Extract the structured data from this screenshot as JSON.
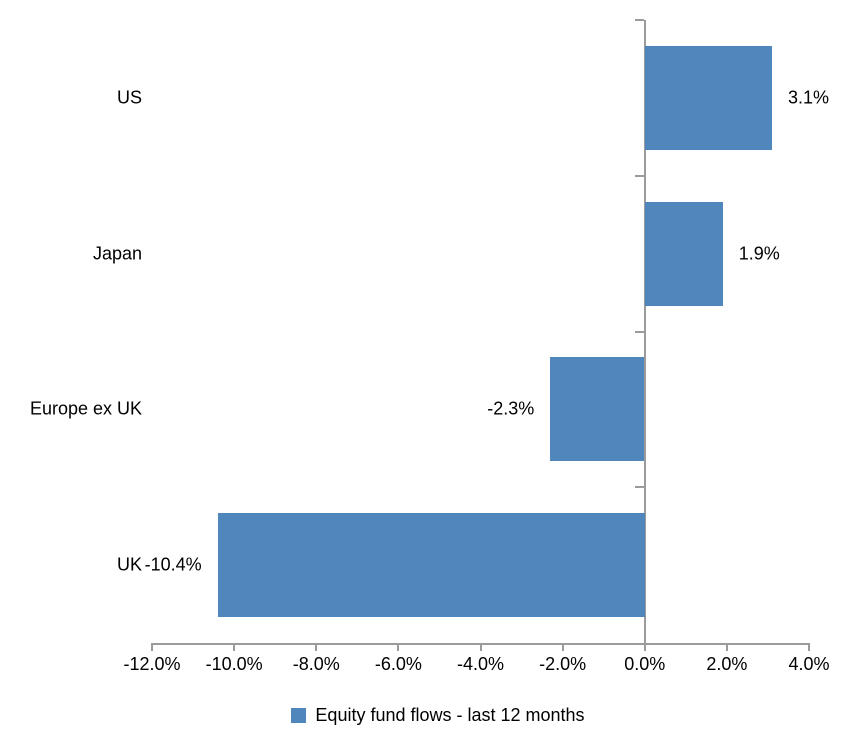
{
  "chart_data": {
    "type": "bar",
    "orientation": "horizontal",
    "title": "",
    "categories": [
      "US",
      "Japan",
      "Europe ex UK",
      "UK"
    ],
    "series": [
      {
        "name": "Equity fund flows - last 12 months",
        "values": [
          3.1,
          1.9,
          -2.3,
          -10.4
        ],
        "value_labels": [
          "3.1%",
          "1.9%",
          "-2.3%",
          "-10.4%"
        ]
      }
    ],
    "xlabel": "",
    "ylabel": "",
    "xlim": [
      -12,
      4
    ],
    "x_ticks": [
      -12,
      -10,
      -8,
      -6,
      -4,
      -2,
      0,
      2,
      4
    ],
    "x_tick_labels": [
      "-12.0%",
      "-10.0%",
      "-8.0%",
      "-6.0%",
      "-4.0%",
      "-2.0%",
      "0.0%",
      "2.0%",
      "4.0%"
    ],
    "grid": false,
    "legend_position": "bottom",
    "colors": {
      "bar": "#4F86BC",
      "axis": "#9B9B9B",
      "text": "#000000",
      "background": "#FFFFFF"
    }
  },
  "legend": {
    "label": "Equity fund flows - last 12 months"
  }
}
